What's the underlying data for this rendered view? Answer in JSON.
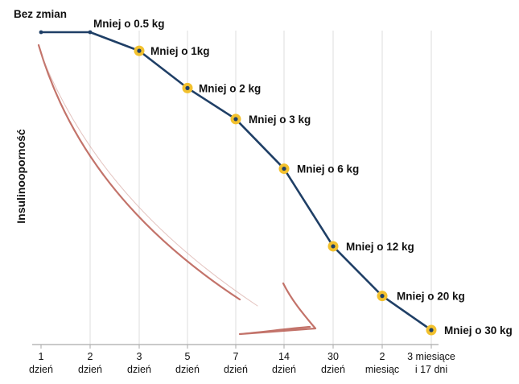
{
  "chart_data": {
    "type": "line",
    "title": "",
    "xlabel": "",
    "ylabel": "Insulinooporność",
    "grid": "vertical",
    "colors": {
      "line": "#1f3f66",
      "marker": "#f2c12e",
      "dot": "#1f3f66",
      "grid": "#e3e3e3",
      "axis": "#aaaaaa",
      "arrow": "#b85a50"
    },
    "categories": [
      [
        "1",
        "dzień"
      ],
      [
        "2",
        "dzień"
      ],
      [
        "3",
        "dzień"
      ],
      [
        "5",
        "dzień"
      ],
      [
        "7",
        "dzień"
      ],
      [
        "14",
        "dzień"
      ],
      [
        "30",
        "dzień"
      ],
      [
        "2",
        "miesiąc"
      ],
      [
        "3 miesiące",
        "i 17 dni"
      ]
    ],
    "series": [
      {
        "values": [
          10,
          10,
          9.4,
          8.2,
          7.2,
          5.6,
          3.1,
          1.5,
          0.4
        ],
        "labels": [
          "Bez zmian",
          "Mniej o 0.5 kg",
          "Mniej o 1kg",
          "Mniej o 2 kg",
          "Mniej o 3 kg",
          "Mniej o 6 kg",
          "Mniej o 12 kg",
          "Mniej o 20 kg",
          "Mniej o 30 kg"
        ],
        "highlighted": [
          false,
          false,
          true,
          true,
          true,
          true,
          true,
          true,
          true
        ]
      }
    ],
    "ylim": [
      0,
      10.5
    ]
  }
}
